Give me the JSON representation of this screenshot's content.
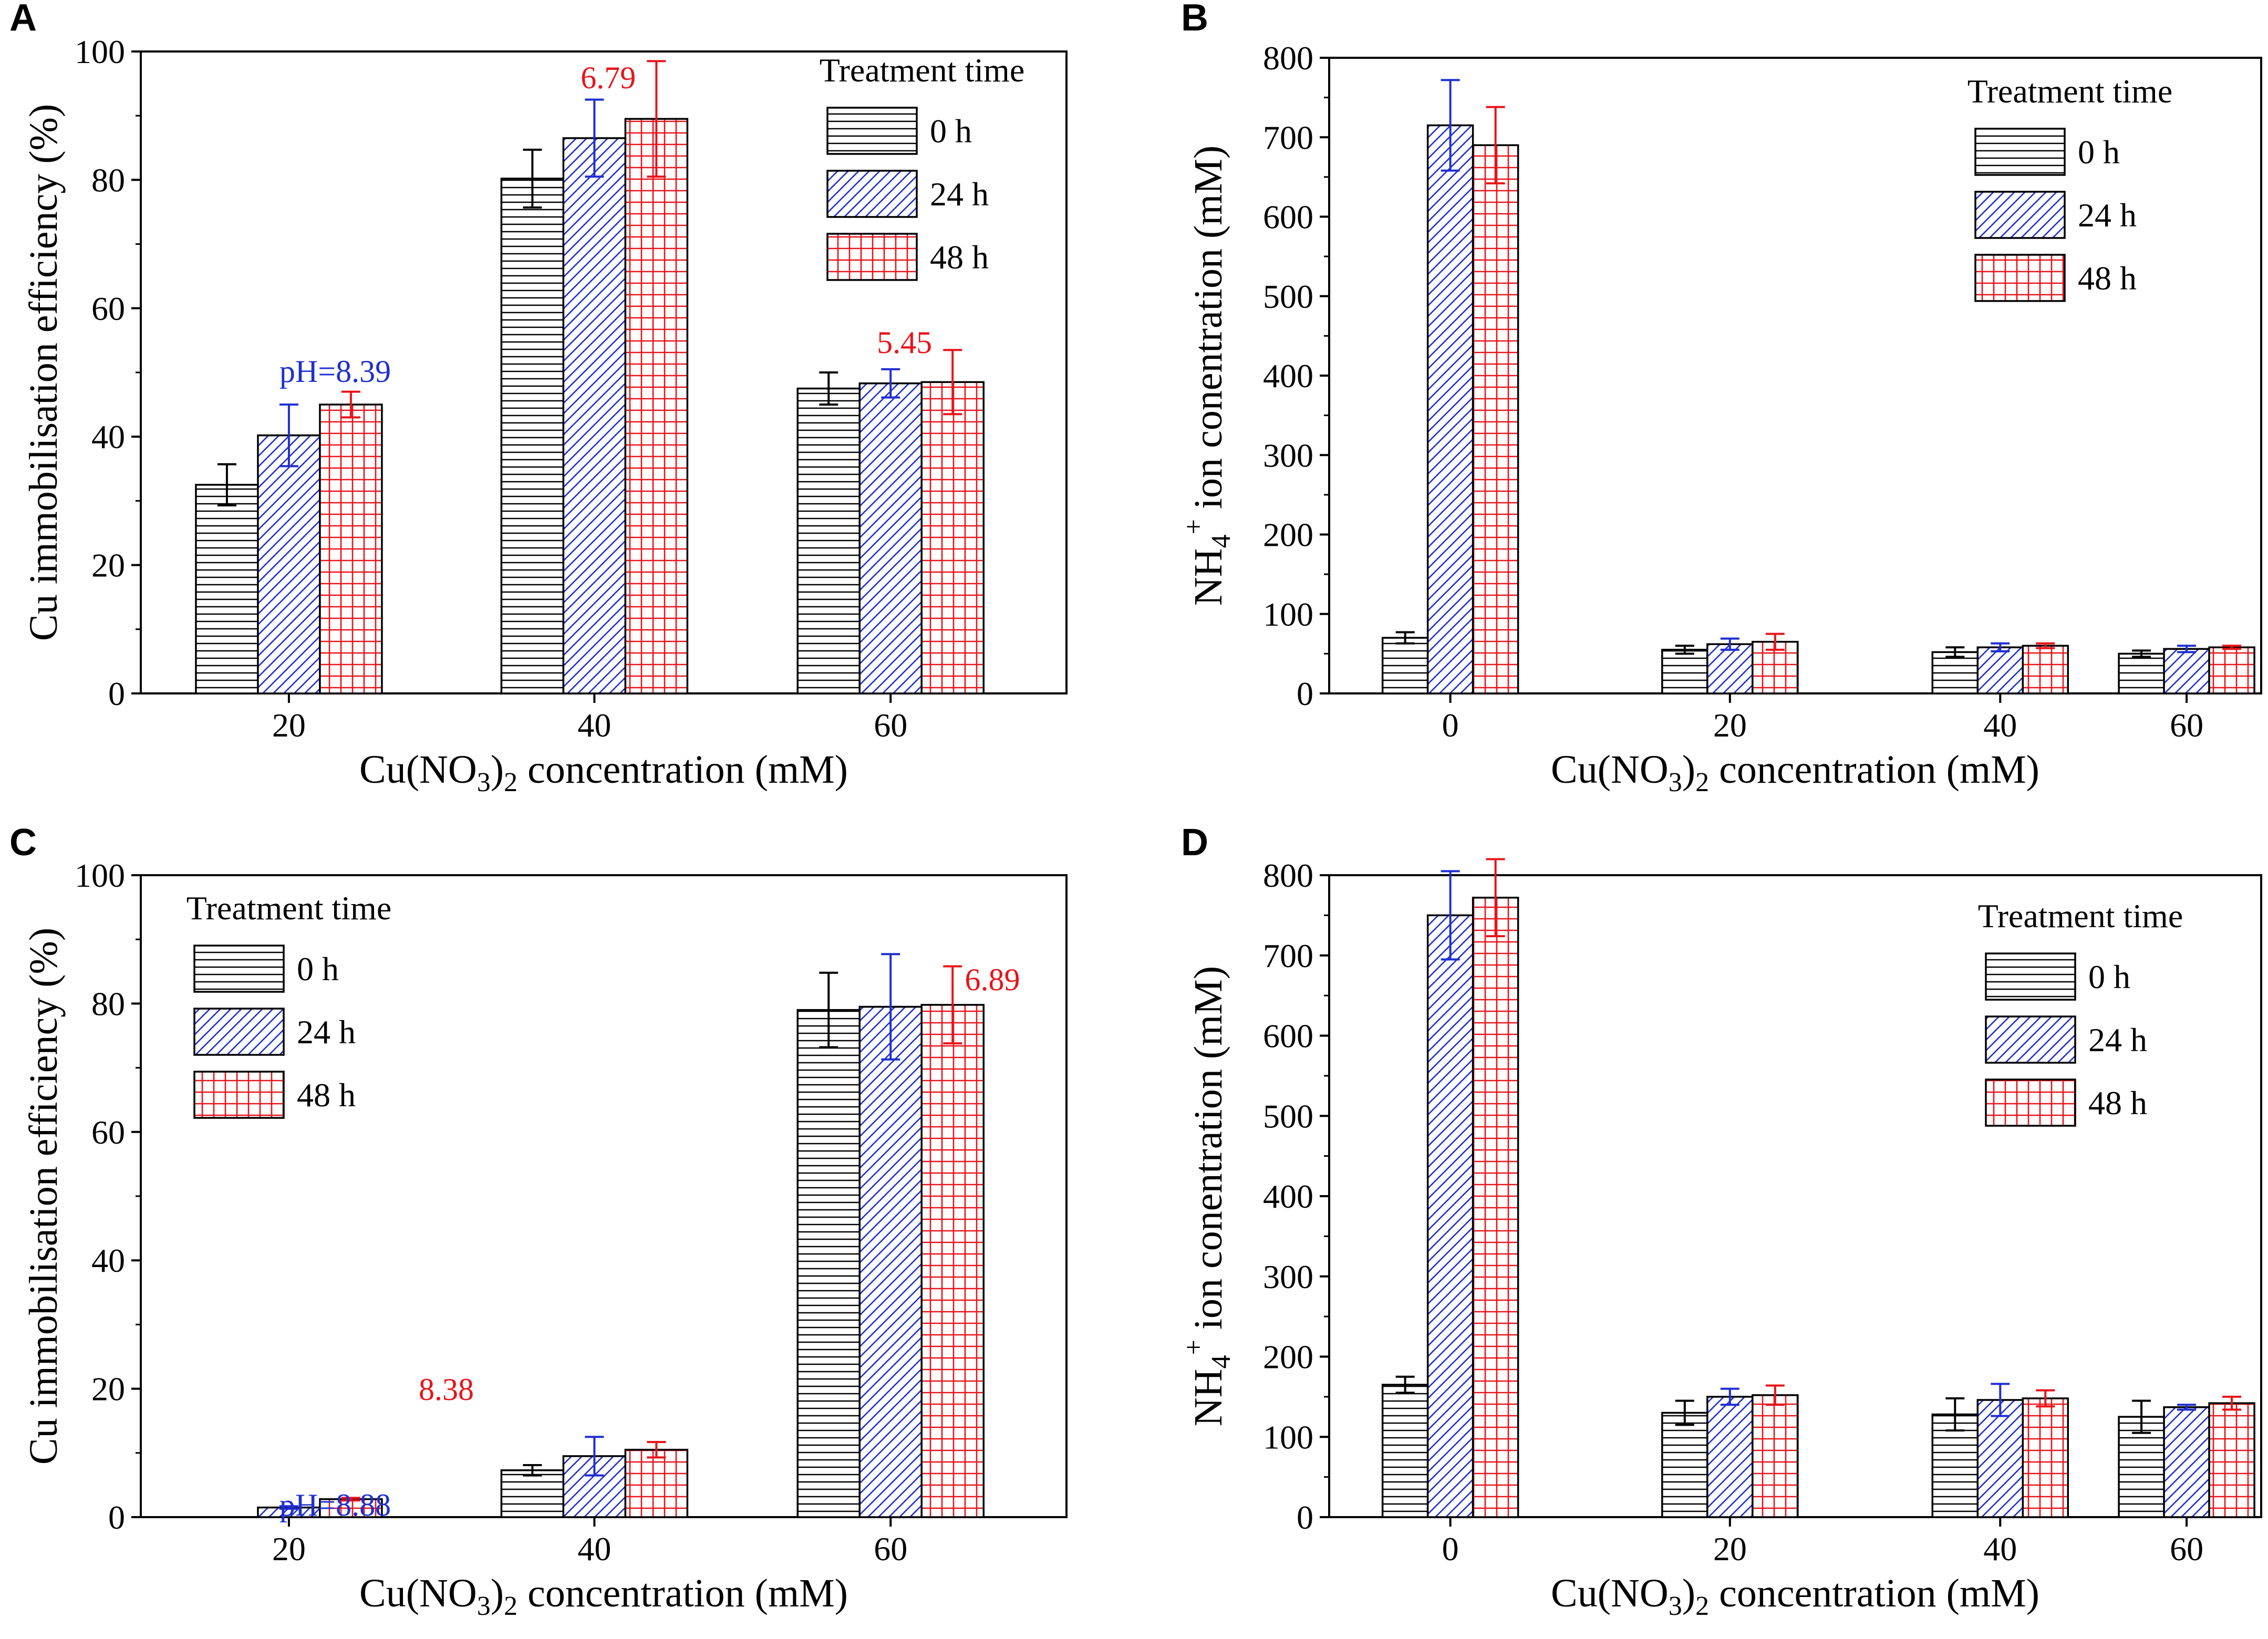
{
  "colors": {
    "h0": "#000000",
    "h24": "#1f2fd0",
    "h48": "#e8141a",
    "axis": "#000000"
  },
  "chart_data": [
    {
      "panel": "A",
      "type": "bar",
      "ylabel": "Cu immobilisation efficiency (%)",
      "xlabel_main": "Cu(NO",
      "xlabel_sub": "3",
      "xlabel_close": ")",
      "xlabel_sub2": "2",
      "xlabel_rest": " concentration (mM)",
      "ylim": [
        0,
        100
      ],
      "yticks": [
        "0",
        "20",
        "40",
        "60",
        "80",
        "100"
      ],
      "categories": [
        "20",
        "40",
        "60"
      ],
      "legend_title": "Treatment time",
      "legend_position": "top-right",
      "series": [
        {
          "name": "0 h",
          "values": [
            32.5,
            80.2,
            47.5
          ],
          "errors": [
            3.2,
            4.5,
            2.5
          ]
        },
        {
          "name": "24 h",
          "values": [
            40.2,
            86.5,
            48.3
          ],
          "errors": [
            4.8,
            6.0,
            2.2
          ]
        },
        {
          "name": "48 h",
          "values": [
            45.0,
            89.5,
            48.5
          ],
          "errors": [
            2.0,
            9.0,
            5.0
          ]
        }
      ],
      "annotations": [
        "pH=8.39",
        "6.79",
        "5.45"
      ]
    },
    {
      "panel": "B",
      "type": "bar",
      "ylabel_pre": "NH",
      "ylabel_sub": "4",
      "ylabel_sup": "+",
      "ylabel_rest": " ion conentration (mM)",
      "xlabel_main": "Cu(NO",
      "xlabel_sub": "3",
      "xlabel_close": ")",
      "xlabel_sub2": "2",
      "xlabel_rest": " concentration (mM)",
      "ylim": [
        0,
        800
      ],
      "yticks": [
        "0",
        "100",
        "200",
        "300",
        "400",
        "500",
        "600",
        "700",
        "800"
      ],
      "categories": [
        "0",
        "20",
        "40",
        "60"
      ],
      "legend_title": "Treatment time",
      "legend_position": "top-right",
      "series": [
        {
          "name": "0 h",
          "values": [
            70,
            55,
            52,
            50
          ],
          "errors": [
            7,
            5,
            6,
            4
          ]
        },
        {
          "name": "24 h",
          "values": [
            715,
            62,
            58,
            56
          ],
          "errors": [
            57,
            7,
            5,
            4
          ]
        },
        {
          "name": "48 h",
          "values": [
            690,
            65,
            60,
            58
          ],
          "errors": [
            48,
            10,
            3,
            2
          ]
        }
      ]
    },
    {
      "panel": "C",
      "type": "bar",
      "ylabel": "Cu immobilisation efficiency (%)",
      "xlabel_main": "Cu(NO",
      "xlabel_sub": "3",
      "xlabel_close": ")",
      "xlabel_sub2": "2",
      "xlabel_rest": " concentration (mM)",
      "ylim": [
        0,
        100
      ],
      "yticks": [
        "0",
        "20",
        "40",
        "60",
        "80",
        "100"
      ],
      "categories": [
        "20",
        "40",
        "60"
      ],
      "legend_title": "Treatment time",
      "legend_position": "top-left",
      "series": [
        {
          "name": "0 h",
          "values": [
            0,
            7.3,
            79.0
          ],
          "errors": [
            0,
            0.8,
            5.8
          ]
        },
        {
          "name": "24 h",
          "values": [
            1.5,
            9.5,
            79.5
          ],
          "errors": [
            0.2,
            3.0,
            8.2
          ]
        },
        {
          "name": "48 h",
          "values": [
            2.8,
            10.5,
            79.8
          ],
          "errors": [
            0.2,
            1.2,
            6.0
          ]
        }
      ],
      "annotations": [
        "pH=8.88",
        "8.38",
        "6.89"
      ]
    },
    {
      "panel": "D",
      "type": "bar",
      "ylabel_pre": "NH",
      "ylabel_sub": "4",
      "ylabel_sup": "+",
      "ylabel_rest": " ion conentration (mM)",
      "xlabel_main": "Cu(NO",
      "xlabel_sub": "3",
      "xlabel_close": ")",
      "xlabel_sub2": "2",
      "xlabel_rest": " concentration (mM)",
      "ylim": [
        0,
        800
      ],
      "yticks": [
        "0",
        "100",
        "200",
        "300",
        "400",
        "500",
        "600",
        "700",
        "800"
      ],
      "categories": [
        "0",
        "20",
        "40",
        "60"
      ],
      "legend_title": "Treatment time",
      "legend_position": "top-right",
      "series": [
        {
          "name": "0 h",
          "values": [
            165,
            130,
            128,
            125
          ],
          "errors": [
            10,
            15,
            20,
            20
          ]
        },
        {
          "name": "24 h",
          "values": [
            750,
            150,
            146,
            137
          ],
          "errors": [
            55,
            10,
            20,
            3
          ]
        },
        {
          "name": "48 h",
          "values": [
            772,
            152,
            148,
            142
          ],
          "errors": [
            48,
            12,
            10,
            8
          ]
        }
      ]
    }
  ]
}
